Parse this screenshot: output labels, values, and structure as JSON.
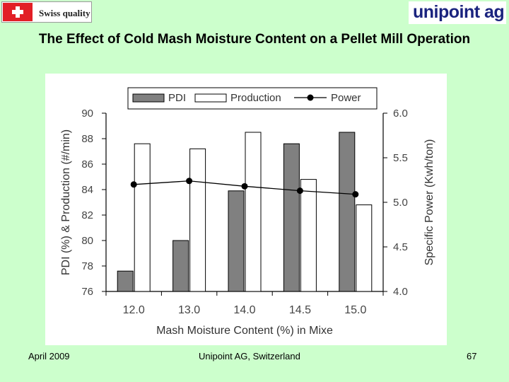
{
  "header": {
    "left_logo_text": "Swiss quality",
    "right_logo_text": "unipoint ag",
    "title": "The Effect of Cold Mash Moisture Content on a Pellet Mill Operation"
  },
  "footer": {
    "date": "April 2009",
    "company": "Unipoint AG, Switzerland",
    "page": "67"
  },
  "colors": {
    "background": "#ccffcc",
    "pdi_bar": "#808080",
    "production_bar": "#ffffff",
    "power_line": "#000000",
    "swiss_red": "#e21f26",
    "unipoint_blue": "#1a237e"
  },
  "chart_data": {
    "type": "bar",
    "categories": [
      "12.0",
      "13.0",
      "14.0",
      "14.5",
      "15.0"
    ],
    "xlabel": "Mash Moisture Content (%) in Mixe",
    "ylabel": "PDI (%) & Production (#/min)",
    "y2label": "Specific Power (Kwh/ton)",
    "ylim": [
      76,
      90
    ],
    "y_ticks": [
      "76",
      "78",
      "80",
      "82",
      "84",
      "86",
      "88",
      "90"
    ],
    "y2lim": [
      4.0,
      6.0
    ],
    "y2_ticks": [
      "4.0",
      "4.5",
      "5.0",
      "5.5",
      "6.0"
    ],
    "legend_position": "top",
    "grid": false,
    "series": [
      {
        "name": "PDI",
        "type": "bar",
        "axis": "left",
        "values": [
          77.6,
          80.0,
          83.9,
          87.6,
          88.5
        ]
      },
      {
        "name": "Production",
        "type": "bar",
        "axis": "left",
        "values": [
          87.6,
          87.2,
          88.5,
          84.8,
          82.8
        ]
      },
      {
        "name": "Power",
        "type": "line",
        "axis": "right",
        "values": [
          5.2,
          5.24,
          5.18,
          5.13,
          5.09
        ]
      }
    ]
  }
}
